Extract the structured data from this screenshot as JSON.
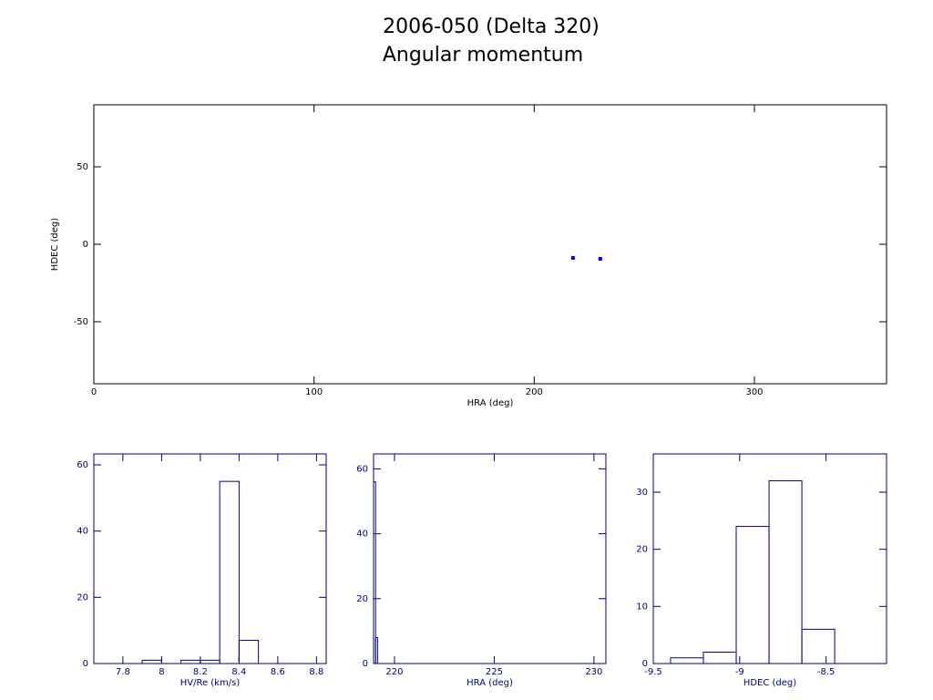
{
  "chart_data": [
    {
      "type": "scatter",
      "title": "2006-050 (Delta 320)",
      "subtitle": "Angular momentum",
      "x_label": "HRA (deg)",
      "y_label": "HDEC (deg)",
      "x": [
        217.6,
        230
      ],
      "y": [
        -8.8,
        -9.4
      ],
      "color": "#0000ff",
      "axis_color": "#000000",
      "xlim": [
        0,
        360
      ],
      "ylim": [
        -90,
        90
      ],
      "xticks": [
        0,
        100,
        200,
        300
      ],
      "yticks": [
        -50,
        0,
        50
      ]
    },
    {
      "type": "histogram",
      "x_label": "HV/Re (km/s)",
      "color": "#000080",
      "bins": [
        7.9,
        8.0,
        8.1,
        8.2,
        8.3,
        8.4,
        8.5
      ],
      "values": [
        1,
        0,
        1,
        1,
        55,
        7
      ],
      "xlim": [
        7.65,
        8.85
      ],
      "ylim": [
        0,
        63.3
      ],
      "xticks": [
        7.8,
        8,
        8.2,
        8.4,
        8.6,
        8.8
      ],
      "yticks": [
        0,
        20,
        40,
        60
      ]
    },
    {
      "type": "histogram",
      "x_label": "HRA (deg)",
      "color": "#000080",
      "bins": [
        218.95,
        219.05,
        219.15
      ],
      "values": [
        56,
        8
      ],
      "xlim": [
        218.95,
        230.6
      ],
      "ylim": [
        0,
        64.6
      ],
      "xticks": [
        220,
        225,
        230
      ],
      "yticks": [
        0,
        20,
        40,
        60
      ]
    },
    {
      "type": "histogram",
      "x_label": "HDEC (deg)",
      "color": "#000080",
      "bins": [
        -9.4,
        -9.21,
        -9.02,
        -8.83,
        -8.64,
        -8.45
      ],
      "values": [
        1,
        2,
        24,
        32,
        6
      ],
      "xlim": [
        -9.5,
        -8.15
      ],
      "ylim": [
        0,
        36.7
      ],
      "xticks": [
        -9.5,
        -9,
        -8.5
      ],
      "yticks": [
        0,
        10,
        20,
        30
      ]
    }
  ]
}
